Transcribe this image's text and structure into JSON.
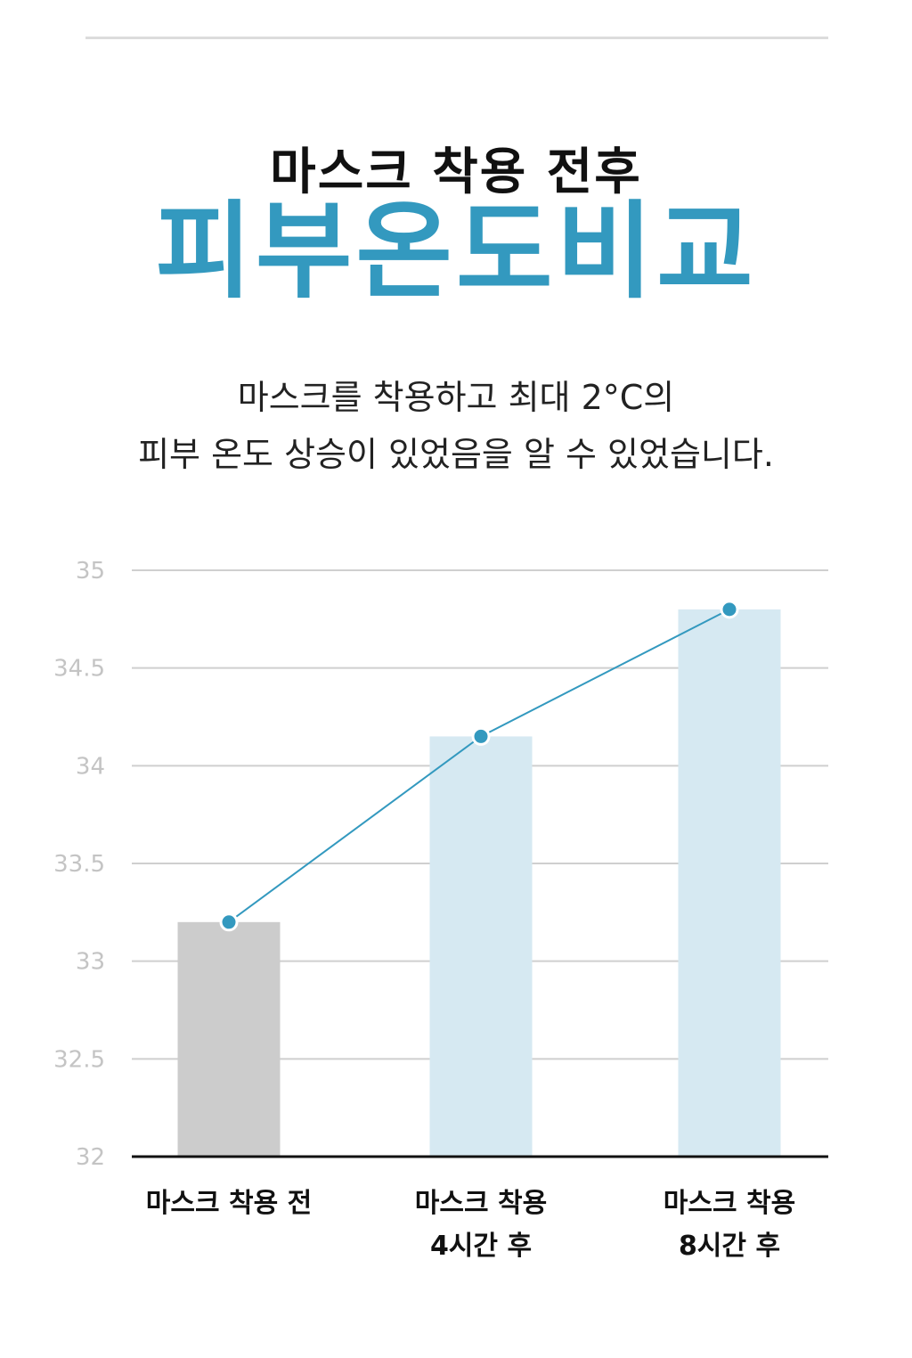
{
  "header": {
    "title": "마스크 착용 전후",
    "headline": "피부온도비교"
  },
  "description": {
    "line1": "마스크를 착용하고 최대 2°C의",
    "line2": "피부 온도 상승이 있었음을 알 수 있었습니다."
  },
  "colors": {
    "accent": "#3399bf",
    "bar_before": "#cccccc",
    "bar_after": "#d6e9f2",
    "grid": "#cfcfcf",
    "tick": "#c4c4c4"
  },
  "chart_data": {
    "type": "bar",
    "categories": [
      [
        "마스크 착용 전"
      ],
      [
        "마스크 착용",
        "4시간 후"
      ],
      [
        "마스크 착용",
        "8시간 후"
      ]
    ],
    "values": [
      33.2,
      34.15,
      34.8
    ],
    "line_overlay": true,
    "ylim": [
      32,
      35
    ],
    "yticks": [
      "35",
      "34.5",
      "34",
      "33.5",
      "33",
      "32.5",
      "32"
    ],
    "grid": true,
    "xlabel": "",
    "ylabel": ""
  }
}
